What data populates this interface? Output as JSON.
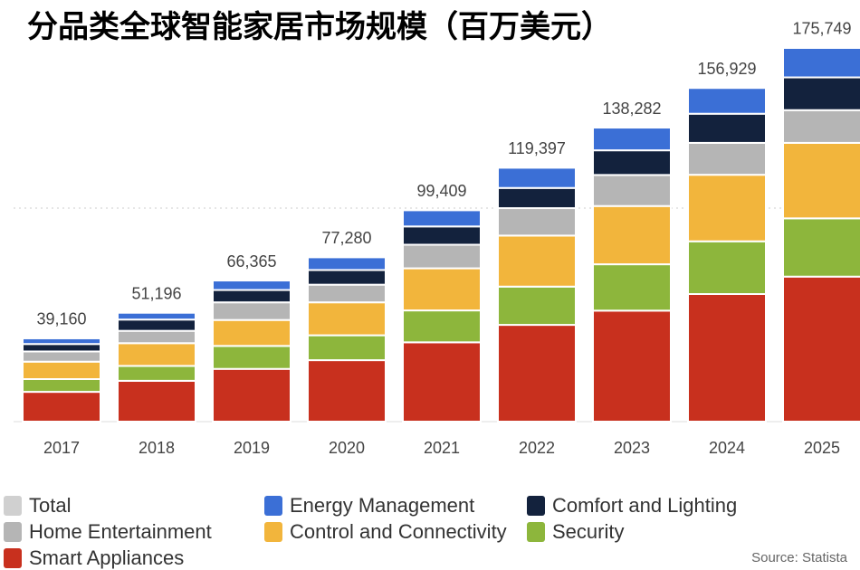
{
  "chart_data": {
    "type": "stacked-bar",
    "title": "分品类全球智能家居市场规模（百万美元）",
    "source": "Source: Statista",
    "categories": [
      "2017",
      "2018",
      "2019",
      "2020",
      "2021",
      "2022",
      "2023",
      "2024",
      "2025"
    ],
    "ylim": [
      0,
      180000
    ],
    "total": {
      "name": "Total",
      "color": "#d0d0d0",
      "values": [
        39160,
        51196,
        66365,
        77280,
        99409,
        119397,
        138282,
        156929,
        175749
      ],
      "value_labels": [
        "39,160",
        "51,196",
        "66,365",
        "77,280",
        "99,409",
        "119,397",
        "138,282",
        "156,929",
        "175,749"
      ]
    },
    "series": [
      {
        "name": "Smart Appliances",
        "color": "#c8301e",
        "values": [
          14000,
          19200,
          24800,
          28900,
          37300,
          45500,
          52200,
          60000,
          68200
        ]
      },
      {
        "name": "Security",
        "color": "#8db63c",
        "values": [
          6000,
          7000,
          10800,
          11700,
          15000,
          18000,
          21800,
          24800,
          27400
        ]
      },
      {
        "name": "Control and Connectivity",
        "color": "#f2b53c",
        "values": [
          8200,
          10700,
          12200,
          15500,
          19800,
          24000,
          27400,
          31300,
          35500
        ]
      },
      {
        "name": "Home Entertainment",
        "color": "#b5b5b5",
        "values": [
          4800,
          5800,
          8300,
          8300,
          11100,
          12900,
          14600,
          15000,
          15400
        ]
      },
      {
        "name": "Comfort and Lighting",
        "color": "#13223d",
        "values": [
          3500,
          5300,
          5800,
          6900,
          8600,
          9500,
          11600,
          13700,
          15400
        ]
      },
      {
        "name": "Energy Management",
        "color": "#3b6fd6",
        "values": [
          2660,
          3196,
          4465,
          5980,
          7609,
          9497,
          10682,
          12129,
          13849
        ]
      }
    ]
  }
}
